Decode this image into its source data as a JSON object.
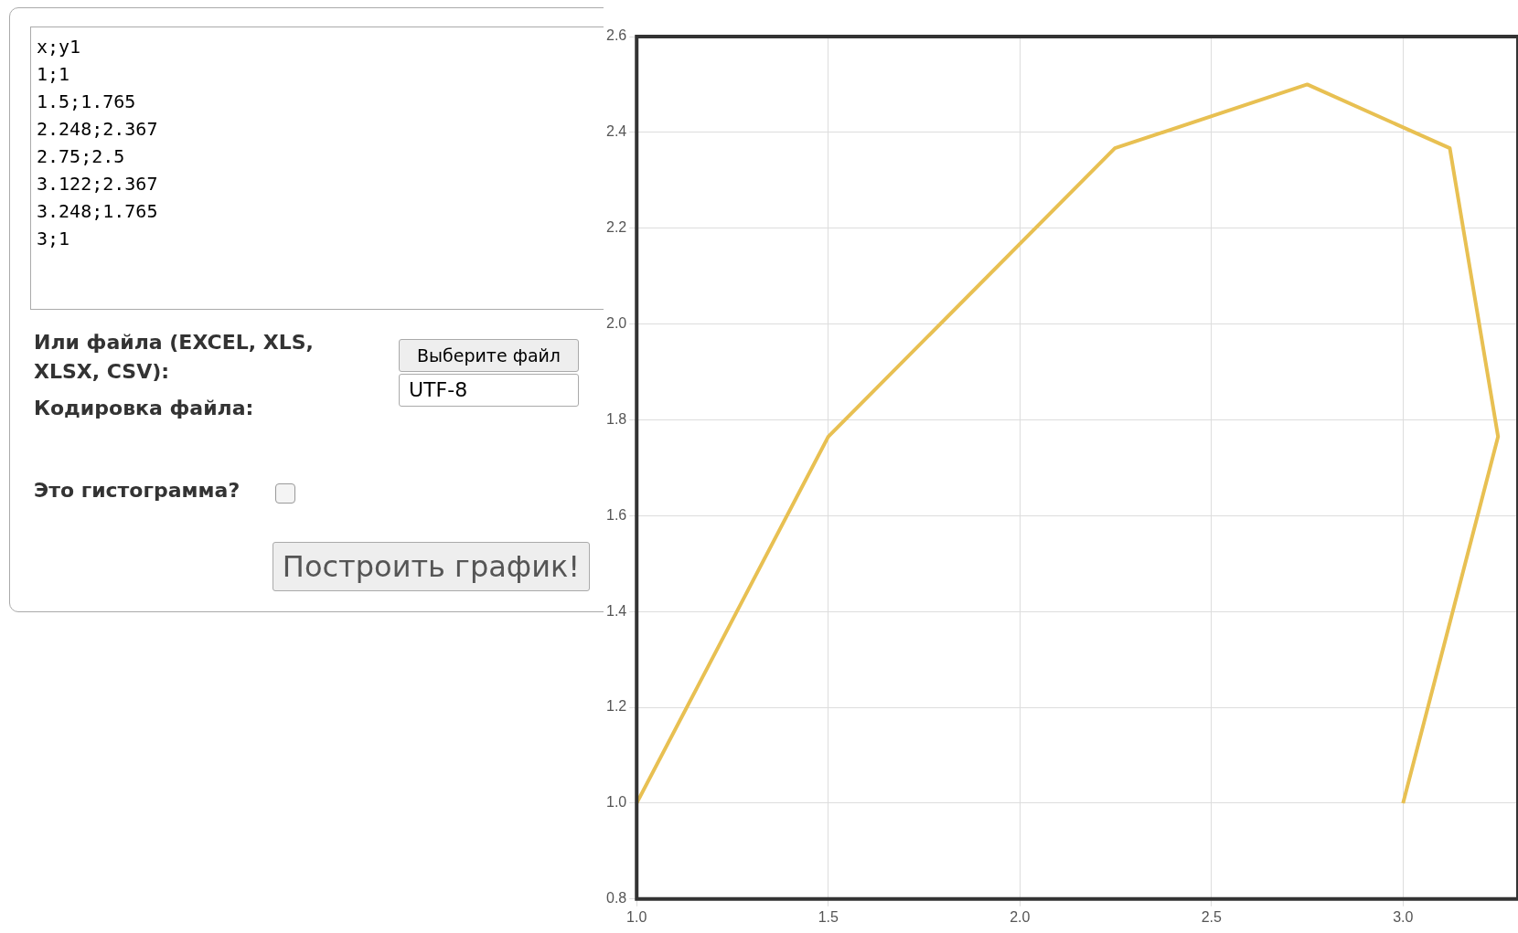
{
  "chart_data": {
    "type": "line",
    "series": [
      {
        "color": "#e8c052",
        "x": [
          1,
          1.5,
          2.248,
          2.75,
          3.122,
          3.248,
          3
        ],
        "values": [
          1,
          1.765,
          2.367,
          2.5,
          2.367,
          1.765,
          1
        ]
      }
    ],
    "xlim": [
      1,
      3.3
    ],
    "xticks": [
      {
        "value": 1,
        "label": "1.0"
      },
      {
        "value": 1.5,
        "label": "1.5"
      },
      {
        "value": 2,
        "label": "2.0"
      },
      {
        "value": 2.5,
        "label": "2.5"
      },
      {
        "value": 3,
        "label": "3.0"
      }
    ],
    "ylim": [
      0.8,
      2.6
    ],
    "yticks": [
      {
        "value": 0.8,
        "label": "0.8"
      },
      {
        "value": 1,
        "label": "1.0"
      },
      {
        "value": 1.2,
        "label": "1.2"
      },
      {
        "value": 1.4,
        "label": "1.4"
      },
      {
        "value": 1.6,
        "label": "1.6"
      },
      {
        "value": 1.8,
        "label": "1.8"
      },
      {
        "value": 2,
        "label": "2.0"
      },
      {
        "value": 2.2,
        "label": "2.2"
      },
      {
        "value": 2.4,
        "label": "2.4"
      },
      {
        "value": 2.6,
        "label": "2.6"
      }
    ],
    "grid": true,
    "legend": false,
    "marker": "none",
    "line_style": "solid",
    "annotations": [
      "x;y1\n1;1\n1.5;1.765\n2.248;2.367\n2.75;2.5\n3.122;2.367\n3.248;1.765\n3;1",
      "Или файла (EXCEL, XLS, XLSX, CSV):",
      "Выберите файл",
      "UTF-8",
      "Кодировка файла:",
      "Это гистограмма?",
      "Построить график!"
    ]
  }
}
